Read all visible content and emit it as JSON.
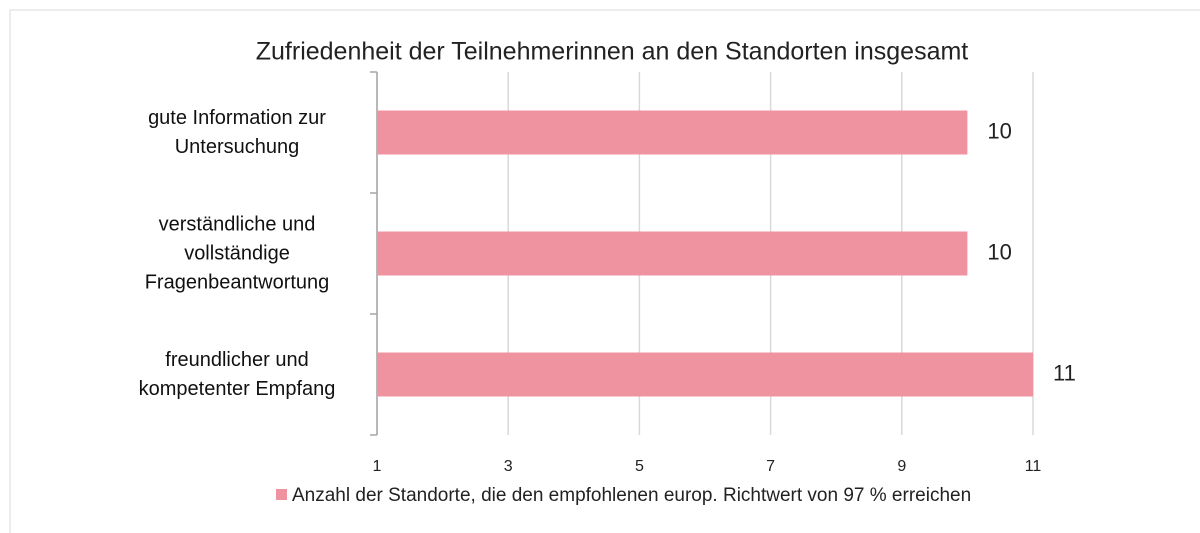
{
  "chart_data": {
    "type": "barh",
    "title": "Zufriedenheit der Teilnehmerinnen an den Standorten insgesamt",
    "categories": [
      "gute Information zur Untersuchung",
      "verständliche und vollständige Fragenbeantwortung",
      "freundlicher und kompetenter Empfang"
    ],
    "series": [
      {
        "name": "Anzahl der Standorte, die den empfohlenen europ. Richtwert von 97 % erreichen",
        "color": "#f093a0",
        "values": [
          10,
          10,
          11
        ]
      }
    ],
    "xlim": [
      1,
      11
    ],
    "xticks": [
      1,
      3,
      5,
      7,
      9,
      11
    ],
    "grid": true,
    "legend": "bottom"
  }
}
